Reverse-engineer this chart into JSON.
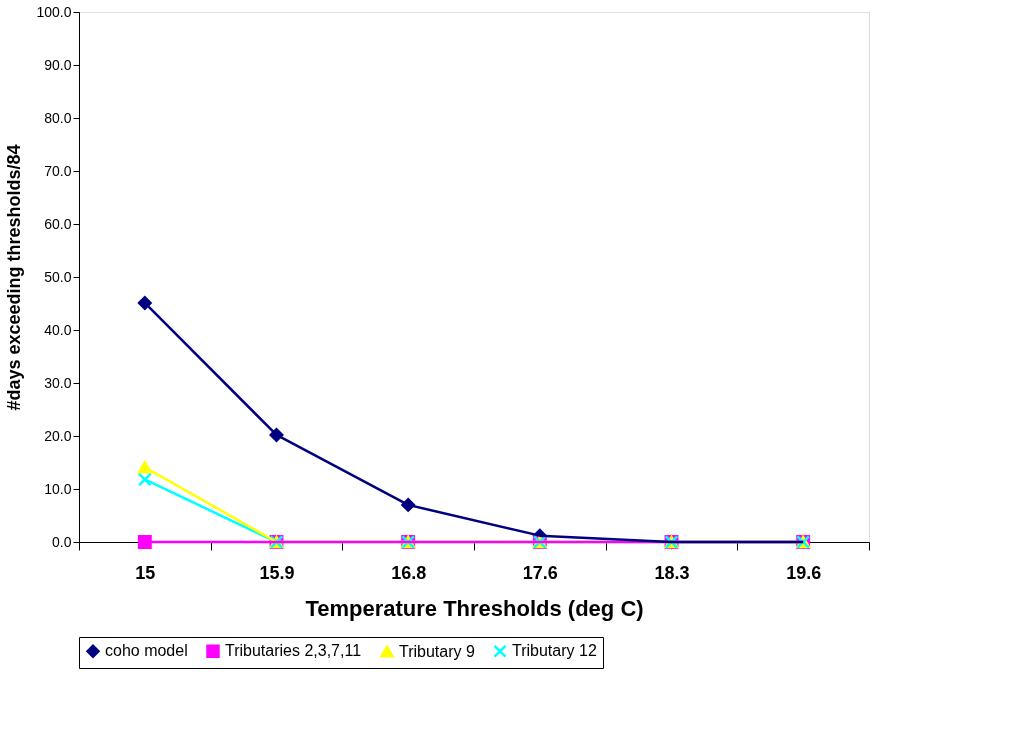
{
  "chart_data": {
    "type": "line",
    "xlabel": "Temperature Thresholds (deg C)",
    "ylabel": "#days exceeding thresholds/84",
    "categories": [
      "15",
      "15.9",
      "16.8",
      "17.6",
      "18.3",
      "19.6"
    ],
    "series": [
      {
        "name": "coho model",
        "color": "#000080",
        "marker": "diamond",
        "values": [
          45.1,
          20.2,
          7.0,
          1.2,
          0,
          0
        ]
      },
      {
        "name": "Tributaries 2,3,7,11",
        "color": "#ff00ff",
        "marker": "square",
        "values": [
          0,
          0,
          0,
          0,
          0,
          0
        ]
      },
      {
        "name": "Tributary 9",
        "color": "#ffff00",
        "marker": "triangle",
        "values": [
          14.1,
          0,
          0,
          0,
          0,
          0
        ]
      },
      {
        "name": "Tributary 12",
        "color": "#00ffff",
        "marker": "cross",
        "values": [
          11.8,
          0,
          0,
          0,
          0,
          0
        ]
      }
    ],
    "ylim": [
      0,
      100
    ],
    "yticks": [
      {
        "value": 0,
        "label": "0.0"
      },
      {
        "value": 10,
        "label": "10.0"
      },
      {
        "value": 20,
        "label": "20.0"
      },
      {
        "value": 30,
        "label": "30.0"
      },
      {
        "value": 40,
        "label": "40.0"
      },
      {
        "value": 50,
        "label": "50.0"
      },
      {
        "value": 60,
        "label": "60.0"
      },
      {
        "value": 70,
        "label": "70.0"
      },
      {
        "value": 80,
        "label": "80.0"
      },
      {
        "value": 90,
        "label": "90.0"
      },
      {
        "value": 100,
        "label": "100.0"
      }
    ],
    "grid": false,
    "legend": "bottom",
    "line_style": "solid"
  }
}
